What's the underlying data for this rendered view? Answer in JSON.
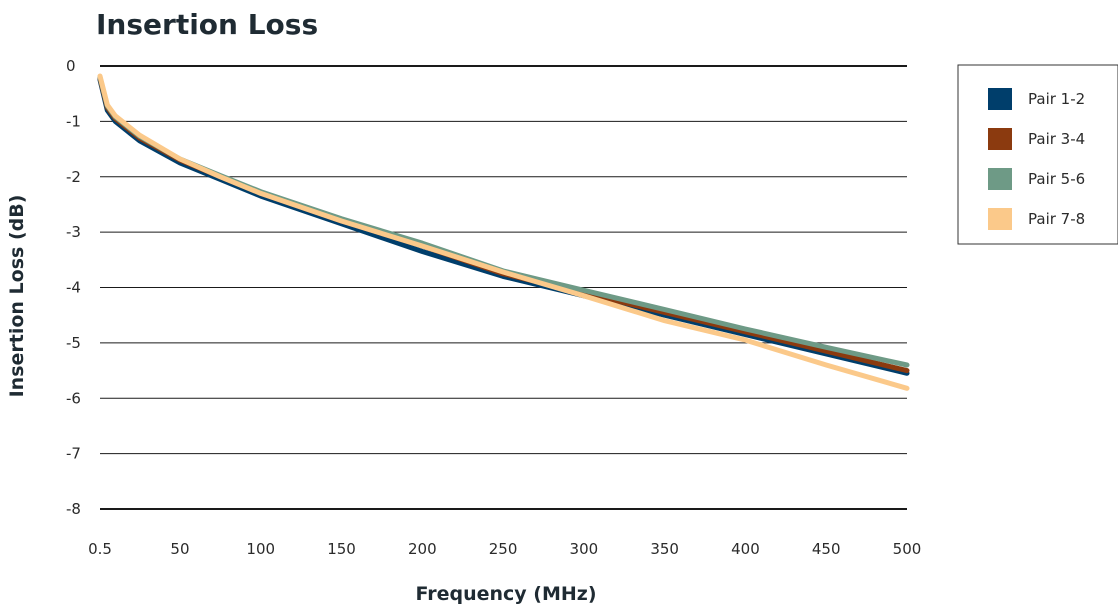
{
  "chart_data": {
    "type": "line",
    "title": "Insertion Loss",
    "xlabel": "Frequency (MHz)",
    "ylabel": "Insertion Loss (dB)",
    "xlim": [
      0.5,
      500
    ],
    "ylim": [
      -8,
      0
    ],
    "x_ticks": [
      "0.5",
      "50",
      "100",
      "150",
      "200",
      "250",
      "300",
      "350",
      "400",
      "450",
      "500"
    ],
    "y_ticks": [
      "0",
      "-1",
      "-2",
      "-3",
      "-4",
      "-5",
      "-6",
      "-7",
      "-8"
    ],
    "grid": "horizontal",
    "legend_position": "top-right",
    "x": [
      0.5,
      5,
      10,
      25,
      50,
      75,
      100,
      150,
      200,
      250,
      300,
      350,
      400,
      450,
      500
    ],
    "series": [
      {
        "name": "Pair 1-2",
        "color": "#003e6b",
        "values": [
          -0.25,
          -0.8,
          -1.0,
          -1.35,
          -1.75,
          -2.05,
          -2.35,
          -2.85,
          -3.35,
          -3.8,
          -4.15,
          -4.5,
          -4.85,
          -5.2,
          -5.55
        ]
      },
      {
        "name": "Pair 3-4",
        "color": "#8b3a0f",
        "values": [
          -0.22,
          -0.75,
          -0.95,
          -1.3,
          -1.7,
          -2.0,
          -2.3,
          -2.8,
          -3.25,
          -3.75,
          -4.1,
          -4.45,
          -4.8,
          -5.15,
          -5.5
        ]
      },
      {
        "name": "Pair 5-6",
        "color": "#6e9a86",
        "values": [
          -0.2,
          -0.72,
          -0.92,
          -1.27,
          -1.68,
          -1.98,
          -2.27,
          -2.76,
          -3.2,
          -3.7,
          -4.05,
          -4.4,
          -4.75,
          -5.08,
          -5.4
        ]
      },
      {
        "name": "Pair 7-8",
        "color": "#fbc98a",
        "values": [
          -0.18,
          -0.7,
          -0.9,
          -1.25,
          -1.68,
          -2.0,
          -2.3,
          -2.8,
          -3.25,
          -3.72,
          -4.15,
          -4.6,
          -4.95,
          -5.4,
          -5.82
        ]
      }
    ]
  }
}
